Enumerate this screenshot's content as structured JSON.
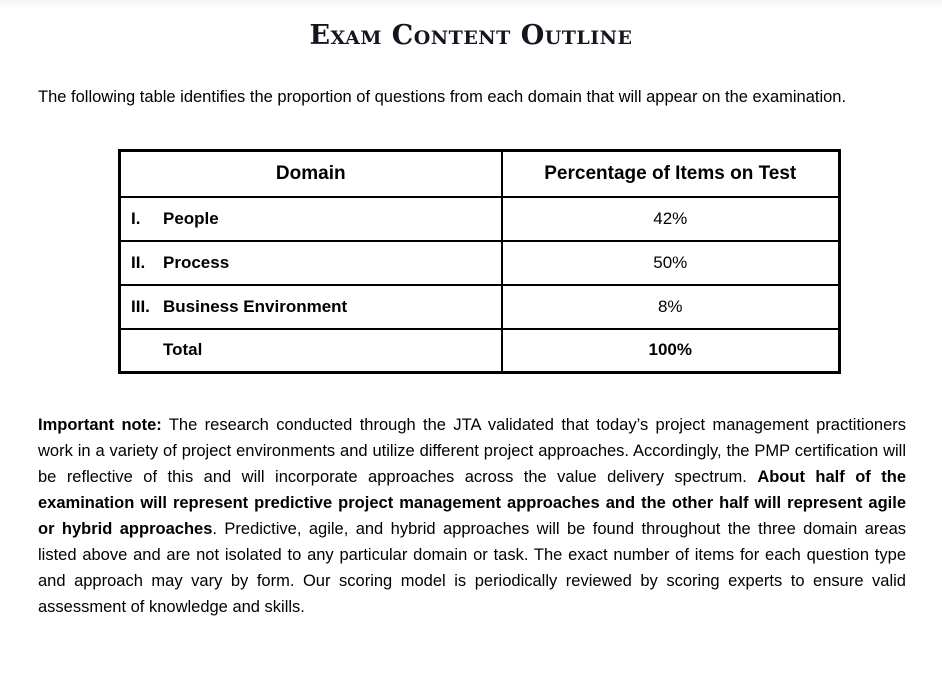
{
  "document": {
    "title": "Exam Content Outline",
    "intro": "The following table identifies the proportion of questions from each domain that will appear on the examination.",
    "table": {
      "headers": [
        "Domain",
        "Percentage of Items on Test"
      ],
      "rows": [
        {
          "numeral": "I.",
          "label": "People",
          "value": "42%",
          "emphasis": false
        },
        {
          "numeral": "II.",
          "label": "Process",
          "value": "50%",
          "emphasis": false
        },
        {
          "numeral": "III.",
          "label": "Business Environment",
          "value": "8%",
          "emphasis": false
        },
        {
          "numeral": "",
          "label": "Total",
          "value": "100%",
          "emphasis": true
        }
      ]
    },
    "note_segments": [
      {
        "text": "Important note:",
        "bold": true
      },
      {
        "text": "  The research conducted through the JTA validated that today’s project management practitioners work in a variety of project environments and utilize different project approaches.  Accordingly, the PMP certification will be reflective of this and will incorporate approaches across the value delivery spectrum.  ",
        "bold": false
      },
      {
        "text": "About half of the examination will represent predictive project management approaches and the other half will represent agile or hybrid approaches",
        "bold": true
      },
      {
        "text": ".  Predictive, agile, and hybrid approaches will be found throughout the three domain areas listed above and are not isolated to any particular domain or task. The exact number of items for each question type and approach may vary by form. Our scoring model is periodically reviewed by scoring experts to ensure valid assessment of knowledge and skills.",
        "bold": false
      }
    ],
    "colors": {
      "background": "#ffffff",
      "text": "#000000",
      "title": "#15151f",
      "table_border": "#000000"
    }
  }
}
